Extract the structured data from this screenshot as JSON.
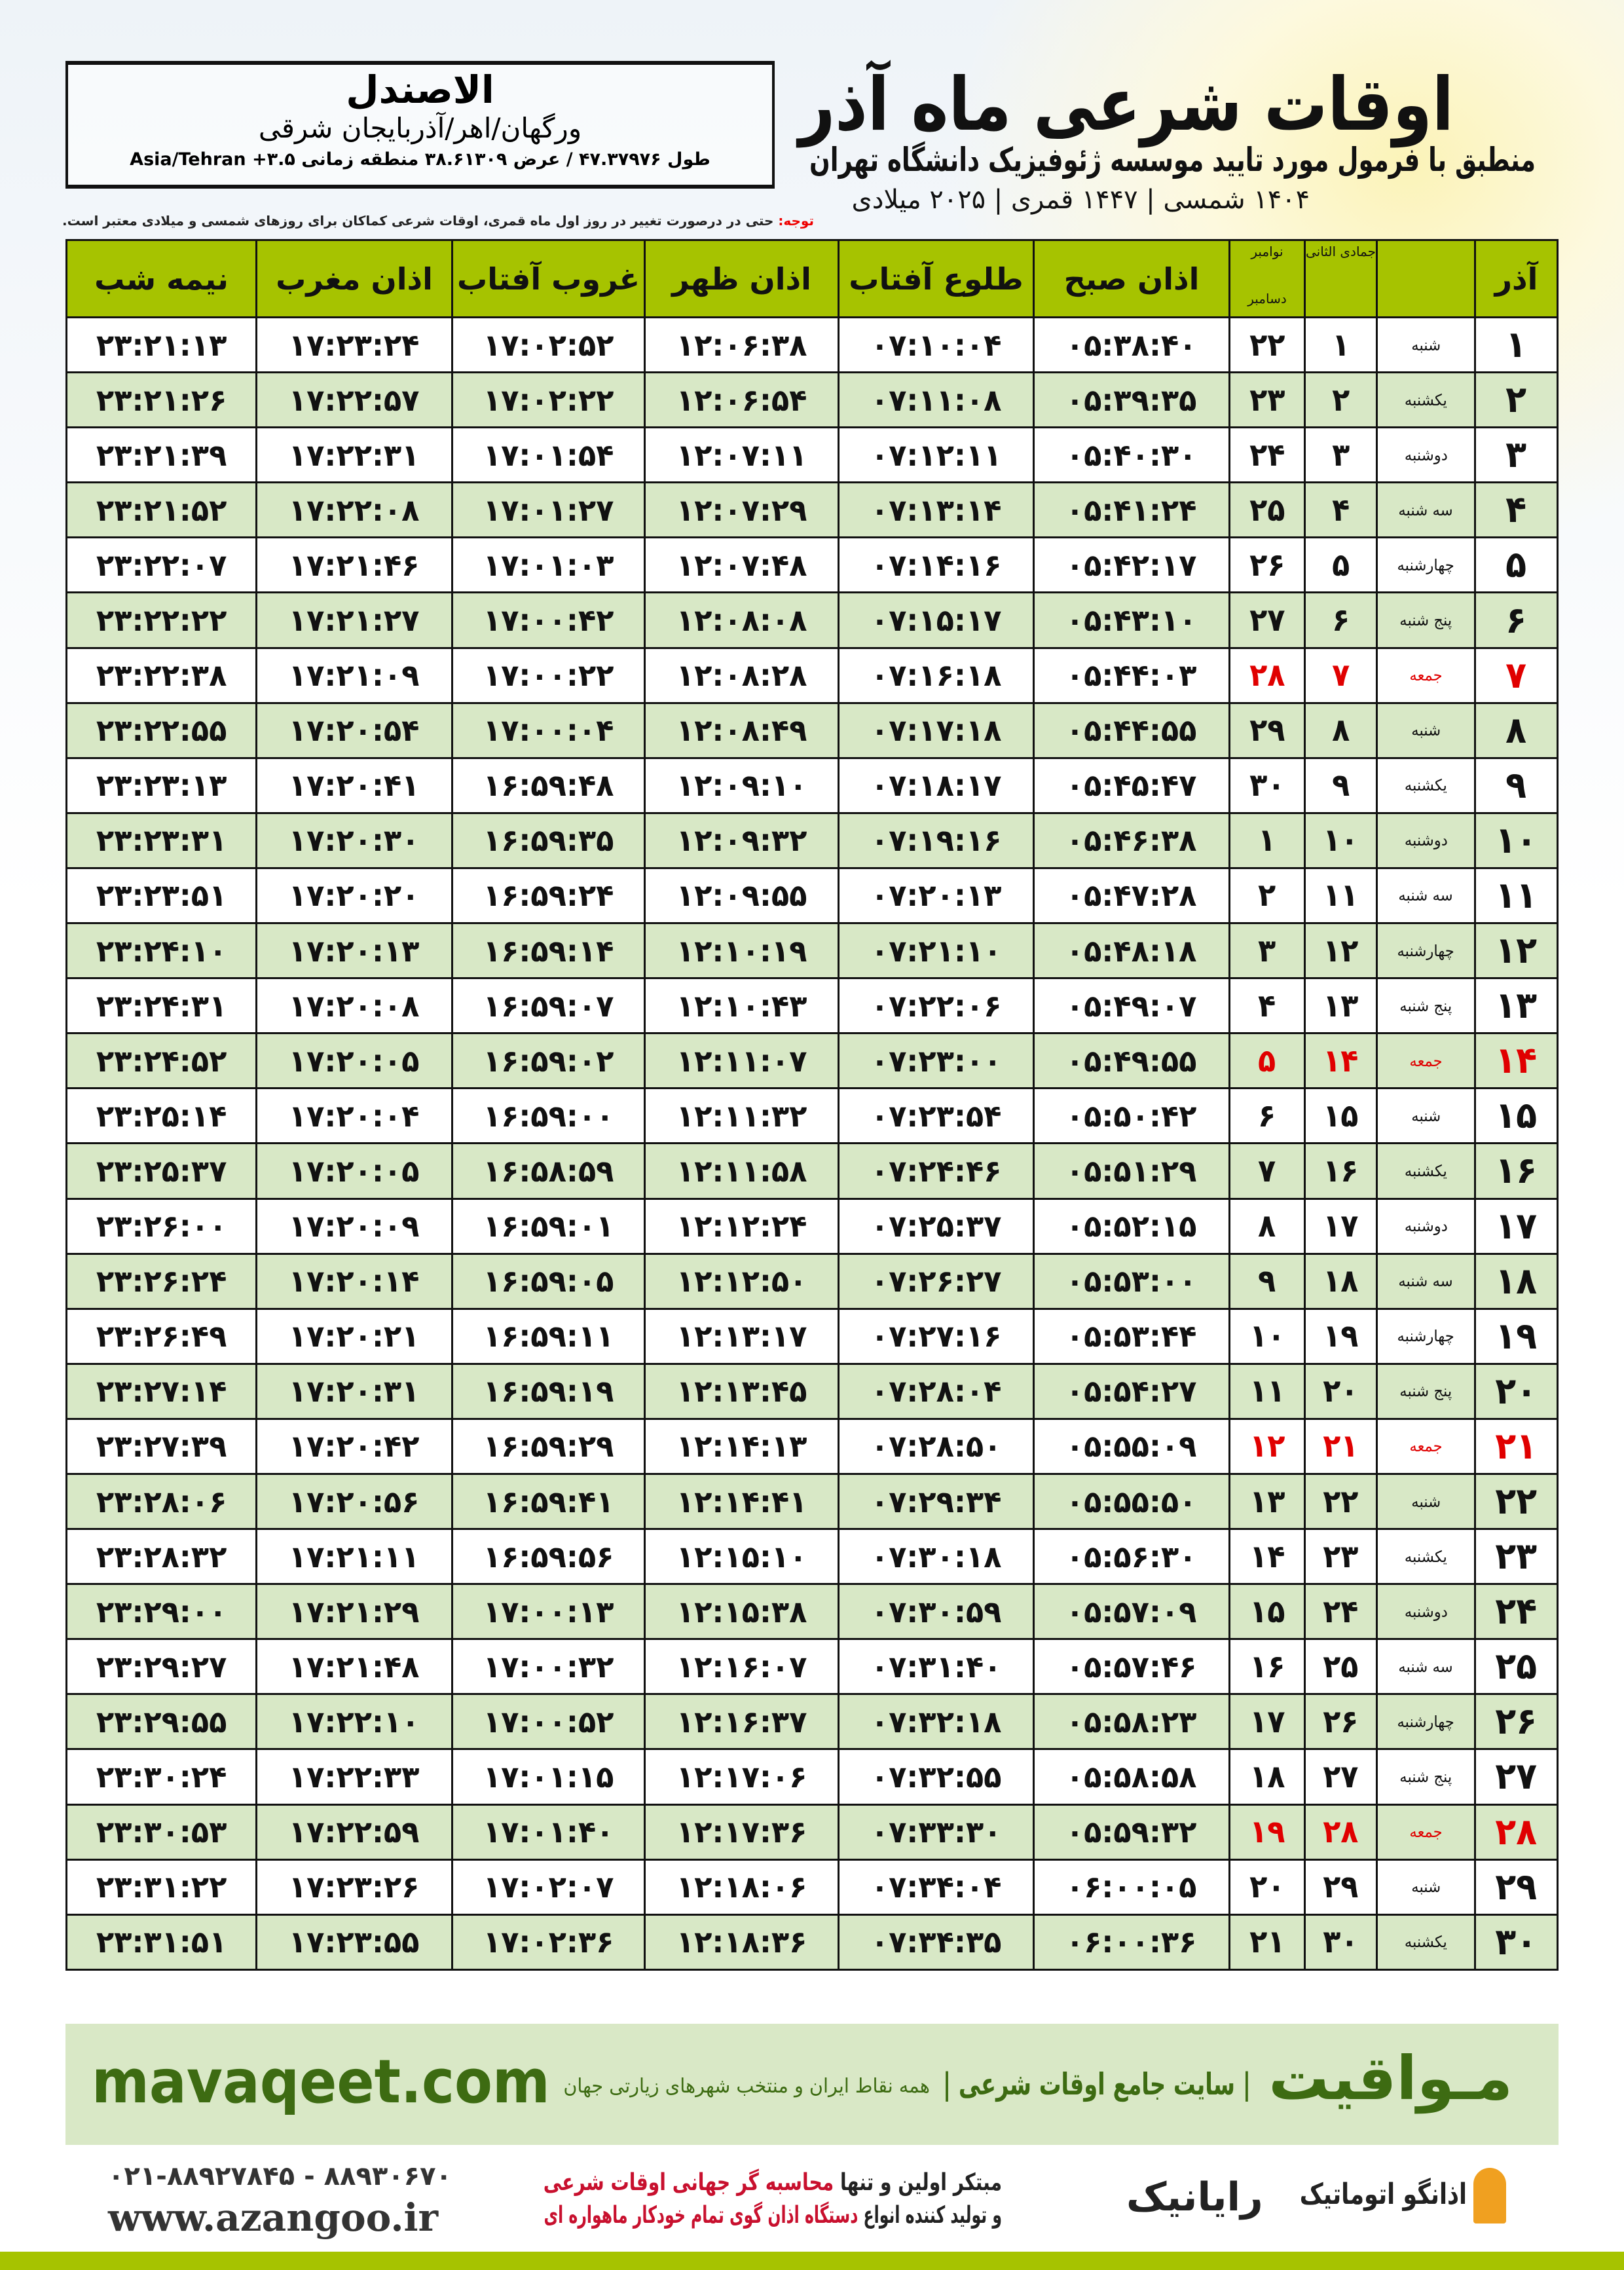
{
  "header": {
    "title": "اوقات شرعی ماه آذر",
    "subtitle": "منطبق با فرمول مورد تایید موسسه ژئوفیزیک دانشگاه تهران",
    "years": "۱۴۰۴ شمسی | ۱۴۴۷ قمری | ۲۰۲۵ میلادی"
  },
  "location": {
    "name": "الاصندل",
    "region": "ورگهان/اهر/آذربایجان شرقی",
    "coords": "طول ۴۷.۳۷۹۷۶ / عرض ۳۸.۶۱۳۰۹ منطقه زمانی ۳.۵+ Asia/Tehran"
  },
  "note": {
    "label": "توجه:",
    "text": " حتی در درصورت تغییر در روز اول ماه قمری، اوقات شرعی کماکان برای روزهای شمسی و میلادی معتبر است."
  },
  "table": {
    "headers": {
      "azar": "آذر",
      "jumada": "جمادی الثانی",
      "nov": "نوامبر",
      "dec": "دسامبر",
      "fajr": "اذان صبح",
      "sunrise": "طلوع آفتاب",
      "dhuhr": "اذان ظهر",
      "sunset": "غروب آفتاب",
      "maghrib": "اذان مغرب",
      "midnight": "نیمه شب"
    },
    "holiday_color": "#e00000",
    "rows": [
      [
        "۱",
        "شنبه",
        "۱",
        "۲۲",
        "۰۵:۳۸:۴۰",
        "۰۷:۱۰:۰۴",
        "۱۲:۰۶:۳۸",
        "۱۷:۰۲:۵۲",
        "۱۷:۲۳:۲۴",
        "۲۳:۲۱:۱۳"
      ],
      [
        "۲",
        "یکشنبه",
        "۲",
        "۲۳",
        "۰۵:۳۹:۳۵",
        "۰۷:۱۱:۰۸",
        "۱۲:۰۶:۵۴",
        "۱۷:۰۲:۲۲",
        "۱۷:۲۲:۵۷",
        "۲۳:۲۱:۲۶"
      ],
      [
        "۳",
        "دوشنبه",
        "۳",
        "۲۴",
        "۰۵:۴۰:۳۰",
        "۰۷:۱۲:۱۱",
        "۱۲:۰۷:۱۱",
        "۱۷:۰۱:۵۴",
        "۱۷:۲۲:۳۱",
        "۲۳:۲۱:۳۹"
      ],
      [
        "۴",
        "سه شنبه",
        "۴",
        "۲۵",
        "۰۵:۴۱:۲۴",
        "۰۷:۱۳:۱۴",
        "۱۲:۰۷:۲۹",
        "۱۷:۰۱:۲۷",
        "۱۷:۲۲:۰۸",
        "۲۳:۲۱:۵۲"
      ],
      [
        "۵",
        "چهارشنبه",
        "۵",
        "۲۶",
        "۰۵:۴۲:۱۷",
        "۰۷:۱۴:۱۶",
        "۱۲:۰۷:۴۸",
        "۱۷:۰۱:۰۳",
        "۱۷:۲۱:۴۶",
        "۲۳:۲۲:۰۷"
      ],
      [
        "۶",
        "پنج شنبه",
        "۶",
        "۲۷",
        "۰۵:۴۳:۱۰",
        "۰۷:۱۵:۱۷",
        "۱۲:۰۸:۰۸",
        "۱۷:۰۰:۴۲",
        "۱۷:۲۱:۲۷",
        "۲۳:۲۲:۲۲"
      ],
      [
        "۷",
        "جمعه",
        "۷",
        "۲۸",
        "۰۵:۴۴:۰۳",
        "۰۷:۱۶:۱۸",
        "۱۲:۰۸:۲۸",
        "۱۷:۰۰:۲۲",
        "۱۷:۲۱:۰۹",
        "۲۳:۲۲:۳۸"
      ],
      [
        "۸",
        "شنبه",
        "۸",
        "۲۹",
        "۰۵:۴۴:۵۵",
        "۰۷:۱۷:۱۸",
        "۱۲:۰۸:۴۹",
        "۱۷:۰۰:۰۴",
        "۱۷:۲۰:۵۴",
        "۲۳:۲۲:۵۵"
      ],
      [
        "۹",
        "یکشنبه",
        "۹",
        "۳۰",
        "۰۵:۴۵:۴۷",
        "۰۷:۱۸:۱۷",
        "۱۲:۰۹:۱۰",
        "۱۶:۵۹:۴۸",
        "۱۷:۲۰:۴۱",
        "۲۳:۲۳:۱۳"
      ],
      [
        "۱۰",
        "دوشنبه",
        "۱۰",
        "۱",
        "۰۵:۴۶:۳۸",
        "۰۷:۱۹:۱۶",
        "۱۲:۰۹:۳۲",
        "۱۶:۵۹:۳۵",
        "۱۷:۲۰:۳۰",
        "۲۳:۲۳:۳۱"
      ],
      [
        "۱۱",
        "سه شنبه",
        "۱۱",
        "۲",
        "۰۵:۴۷:۲۸",
        "۰۷:۲۰:۱۳",
        "۱۲:۰۹:۵۵",
        "۱۶:۵۹:۲۴",
        "۱۷:۲۰:۲۰",
        "۲۳:۲۳:۵۱"
      ],
      [
        "۱۲",
        "چهارشنبه",
        "۱۲",
        "۳",
        "۰۵:۴۸:۱۸",
        "۰۷:۲۱:۱۰",
        "۱۲:۱۰:۱۹",
        "۱۶:۵۹:۱۴",
        "۱۷:۲۰:۱۳",
        "۲۳:۲۴:۱۰"
      ],
      [
        "۱۳",
        "پنج شنبه",
        "۱۳",
        "۴",
        "۰۵:۴۹:۰۷",
        "۰۷:۲۲:۰۶",
        "۱۲:۱۰:۴۳",
        "۱۶:۵۹:۰۷",
        "۱۷:۲۰:۰۸",
        "۲۳:۲۴:۳۱"
      ],
      [
        "۱۴",
        "جمعه",
        "۱۴",
        "۵",
        "۰۵:۴۹:۵۵",
        "۰۷:۲۳:۰۰",
        "۱۲:۱۱:۰۷",
        "۱۶:۵۹:۰۲",
        "۱۷:۲۰:۰۵",
        "۲۳:۲۴:۵۲"
      ],
      [
        "۱۵",
        "شنبه",
        "۱۵",
        "۶",
        "۰۵:۵۰:۴۲",
        "۰۷:۲۳:۵۴",
        "۱۲:۱۱:۳۲",
        "۱۶:۵۹:۰۰",
        "۱۷:۲۰:۰۴",
        "۲۳:۲۵:۱۴"
      ],
      [
        "۱۶",
        "یکشنبه",
        "۱۶",
        "۷",
        "۰۵:۵۱:۲۹",
        "۰۷:۲۴:۴۶",
        "۱۲:۱۱:۵۸",
        "۱۶:۵۸:۵۹",
        "۱۷:۲۰:۰۵",
        "۲۳:۲۵:۳۷"
      ],
      [
        "۱۷",
        "دوشنبه",
        "۱۷",
        "۸",
        "۰۵:۵۲:۱۵",
        "۰۷:۲۵:۳۷",
        "۱۲:۱۲:۲۴",
        "۱۶:۵۹:۰۱",
        "۱۷:۲۰:۰۹",
        "۲۳:۲۶:۰۰"
      ],
      [
        "۱۸",
        "سه شنبه",
        "۱۸",
        "۹",
        "۰۵:۵۳:۰۰",
        "۰۷:۲۶:۲۷",
        "۱۲:۱۲:۵۰",
        "۱۶:۵۹:۰۵",
        "۱۷:۲۰:۱۴",
        "۲۳:۲۶:۲۴"
      ],
      [
        "۱۹",
        "چهارشنبه",
        "۱۹",
        "۱۰",
        "۰۵:۵۳:۴۴",
        "۰۷:۲۷:۱۶",
        "۱۲:۱۳:۱۷",
        "۱۶:۵۹:۱۱",
        "۱۷:۲۰:۲۱",
        "۲۳:۲۶:۴۹"
      ],
      [
        "۲۰",
        "پنج شنبه",
        "۲۰",
        "۱۱",
        "۰۵:۵۴:۲۷",
        "۰۷:۲۸:۰۴",
        "۱۲:۱۳:۴۵",
        "۱۶:۵۹:۱۹",
        "۱۷:۲۰:۳۱",
        "۲۳:۲۷:۱۴"
      ],
      [
        "۲۱",
        "جمعه",
        "۲۱",
        "۱۲",
        "۰۵:۵۵:۰۹",
        "۰۷:۲۸:۵۰",
        "۱۲:۱۴:۱۳",
        "۱۶:۵۹:۲۹",
        "۱۷:۲۰:۴۲",
        "۲۳:۲۷:۳۹"
      ],
      [
        "۲۲",
        "شنبه",
        "۲۲",
        "۱۳",
        "۰۵:۵۵:۵۰",
        "۰۷:۲۹:۳۴",
        "۱۲:۱۴:۴۱",
        "۱۶:۵۹:۴۱",
        "۱۷:۲۰:۵۶",
        "۲۳:۲۸:۰۶"
      ],
      [
        "۲۳",
        "یکشنبه",
        "۲۳",
        "۱۴",
        "۰۵:۵۶:۳۰",
        "۰۷:۳۰:۱۸",
        "۱۲:۱۵:۱۰",
        "۱۶:۵۹:۵۶",
        "۱۷:۲۱:۱۱",
        "۲۳:۲۸:۳۲"
      ],
      [
        "۲۴",
        "دوشنبه",
        "۲۴",
        "۱۵",
        "۰۵:۵۷:۰۹",
        "۰۷:۳۰:۵۹",
        "۱۲:۱۵:۳۸",
        "۱۷:۰۰:۱۳",
        "۱۷:۲۱:۲۹",
        "۲۳:۲۹:۰۰"
      ],
      [
        "۲۵",
        "سه شنبه",
        "۲۵",
        "۱۶",
        "۰۵:۵۷:۴۶",
        "۰۷:۳۱:۴۰",
        "۱۲:۱۶:۰۷",
        "۱۷:۰۰:۳۲",
        "۱۷:۲۱:۴۸",
        "۲۳:۲۹:۲۷"
      ],
      [
        "۲۶",
        "چهارشنبه",
        "۲۶",
        "۱۷",
        "۰۵:۵۸:۲۳",
        "۰۷:۳۲:۱۸",
        "۱۲:۱۶:۳۷",
        "۱۷:۰۰:۵۲",
        "۱۷:۲۲:۱۰",
        "۲۳:۲۹:۵۵"
      ],
      [
        "۲۷",
        "پنج شنبه",
        "۲۷",
        "۱۸",
        "۰۵:۵۸:۵۸",
        "۰۷:۳۲:۵۵",
        "۱۲:۱۷:۰۶",
        "۱۷:۰۱:۱۵",
        "۱۷:۲۲:۳۳",
        "۲۳:۳۰:۲۴"
      ],
      [
        "۲۸",
        "جمعه",
        "۲۸",
        "۱۹",
        "۰۵:۵۹:۳۲",
        "۰۷:۳۳:۳۰",
        "۱۲:۱۷:۳۶",
        "۱۷:۰۱:۴۰",
        "۱۷:۲۲:۵۹",
        "۲۳:۳۰:۵۳"
      ],
      [
        "۲۹",
        "شنبه",
        "۲۹",
        "۲۰",
        "۰۶:۰۰:۰۵",
        "۰۷:۳۴:۰۴",
        "۱۲:۱۸:۰۶",
        "۱۷:۰۲:۰۷",
        "۱۷:۲۳:۲۶",
        "۲۳:۳۱:۲۲"
      ],
      [
        "۳۰",
        "یکشنبه",
        "۳۰",
        "۲۱",
        "۰۶:۰۰:۳۶",
        "۰۷:۳۴:۳۵",
        "۱۲:۱۸:۳۶",
        "۱۷:۰۲:۳۶",
        "۱۷:۲۳:۵۵",
        "۲۳:۳۱:۵۱"
      ]
    ]
  },
  "banner": {
    "logo": "مـواقیت",
    "site": "| سایت جامع اوقات شرعی |",
    "sub": "همه نقاط ایران و منتخب شهرهای زیارتی جهان",
    "url": "mavaqeet.com"
  },
  "footer": {
    "phone": "۰۲۱-۸۸۹۲۷۸۴۵ - ۸۸۹۳۰۶۷۰",
    "www": "www.azangoo.ir",
    "line1_a": "مبتکر اولین و تنها ",
    "line1_b": "محاسبه گر جهانی اوقات شرعی",
    "line2_a": "و تولید کننده انواع ",
    "line2_b": "دستگاه اذان گوی تمام خودکار ماهواره ای",
    "rayanik": "رایانیک",
    "azangoo": "اذانگو اتوماتیک",
    "accent": "#c8102e"
  }
}
